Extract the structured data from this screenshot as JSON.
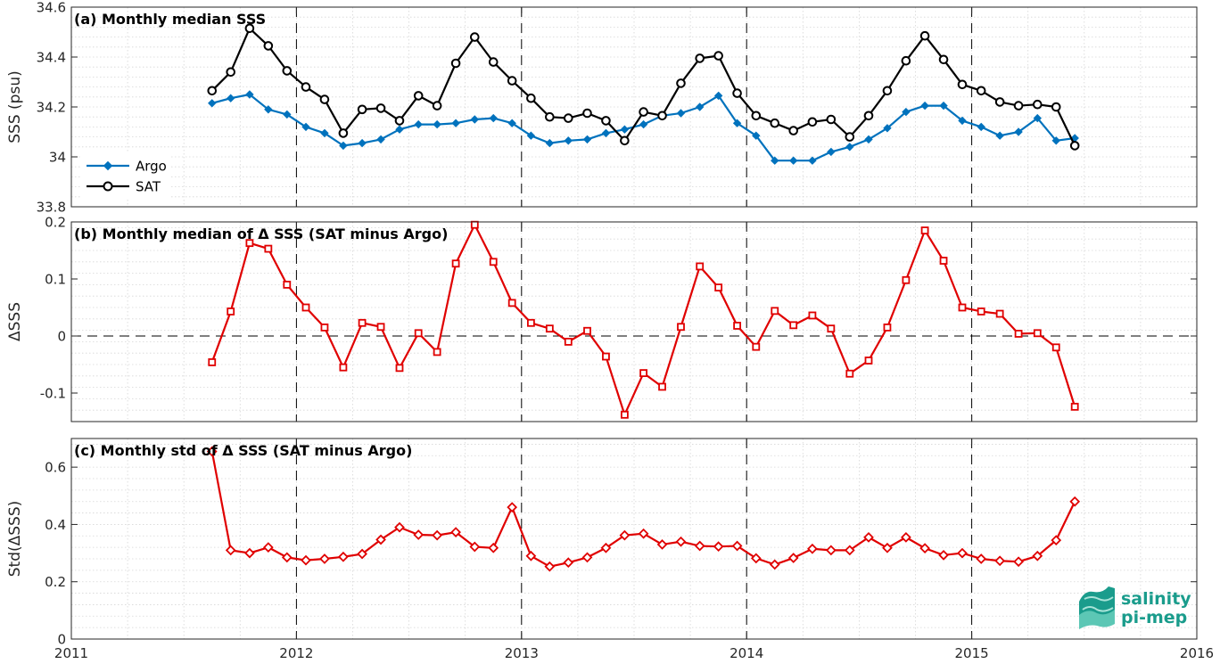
{
  "colors": {
    "argo": "#0072BD",
    "sat": "#000000",
    "delta": "#E00000",
    "logo": "#1a9c8c"
  },
  "logo": {
    "line1": "salinity",
    "line2": "pi-mep",
    "icon": "salinity-wave-logo-icon"
  },
  "chart_data": [
    {
      "type": "line",
      "title": "(a) Monthly median SSS",
      "xlabel": "",
      "ylabel": "SSS (psu)",
      "xlim": [
        2011,
        2016
      ],
      "ylim": [
        33.8,
        34.6
      ],
      "xticks": [
        "2011",
        "2012",
        "2013",
        "2014",
        "2015",
        "2016"
      ],
      "yticks": [
        "33.8",
        "34",
        "34.2",
        "34.4",
        "34.6"
      ],
      "grid": "on (dotted minor)",
      "legend_position": "lower-left",
      "year_dividers": [
        2012,
        2013,
        2014,
        2015
      ],
      "x": [
        2011.625,
        2011.708,
        2011.792,
        2011.875,
        2011.958,
        2012.042,
        2012.125,
        2012.208,
        2012.292,
        2012.375,
        2012.458,
        2012.542,
        2012.625,
        2012.708,
        2012.792,
        2012.875,
        2012.958,
        2013.042,
        2013.125,
        2013.208,
        2013.292,
        2013.375,
        2013.458,
        2013.542,
        2013.625,
        2013.708,
        2013.792,
        2013.875,
        2013.958,
        2014.042,
        2014.125,
        2014.208,
        2014.292,
        2014.375,
        2014.458,
        2014.542,
        2014.625,
        2014.708,
        2014.792,
        2014.875,
        2014.958,
        2015.042,
        2015.125,
        2015.208,
        2015.292,
        2015.375,
        2015.458
      ],
      "series": [
        {
          "name": "Argo",
          "marker": "diamond",
          "values": [
            34.215,
            34.235,
            34.25,
            34.19,
            34.17,
            34.12,
            34.095,
            34.045,
            34.055,
            34.07,
            34.11,
            34.13,
            34.13,
            34.135,
            34.15,
            34.155,
            34.135,
            34.085,
            34.055,
            34.065,
            34.07,
            34.095,
            34.11,
            34.13,
            34.165,
            34.175,
            34.2,
            34.245,
            34.135,
            34.085,
            33.985,
            33.985,
            33.985,
            34.02,
            34.04,
            34.07,
            34.115,
            34.18,
            34.205,
            34.205,
            34.145,
            34.12,
            34.085,
            34.1,
            34.155,
            34.065,
            34.075
          ]
        },
        {
          "name": "SAT",
          "marker": "circle",
          "values": [
            34.265,
            34.34,
            34.515,
            34.445,
            34.345,
            34.28,
            34.23,
            34.095,
            34.19,
            34.195,
            34.145,
            34.245,
            34.205,
            34.375,
            34.48,
            34.38,
            34.305,
            34.235,
            34.16,
            34.155,
            34.175,
            34.145,
            34.065,
            34.18,
            34.165,
            34.295,
            34.395,
            34.405,
            34.255,
            34.165,
            34.135,
            34.105,
            34.14,
            34.15,
            34.08,
            34.165,
            34.265,
            34.385,
            34.485,
            34.39,
            34.29,
            34.265,
            34.22,
            34.205,
            34.21,
            34.2,
            34.045
          ]
        }
      ]
    },
    {
      "type": "line",
      "title": "(b) Monthly median of Δ SSS (SAT minus Argo)",
      "xlabel": "",
      "ylabel": "ΔSSS",
      "xlim": [
        2011,
        2016
      ],
      "ylim": [
        -0.15,
        0.2
      ],
      "xticks": [
        "2011",
        "2012",
        "2013",
        "2014",
        "2015",
        "2016"
      ],
      "yticks": [
        "-0.1",
        "0",
        "0.1",
        "0.2"
      ],
      "grid": "on (dotted minor)",
      "zero_line": true,
      "year_dividers": [
        2012,
        2013,
        2014,
        2015
      ],
      "x": [
        2011.625,
        2011.708,
        2011.792,
        2011.875,
        2011.958,
        2012.042,
        2012.125,
        2012.208,
        2012.292,
        2012.375,
        2012.458,
        2012.542,
        2012.625,
        2012.708,
        2012.792,
        2012.875,
        2012.958,
        2013.042,
        2013.125,
        2013.208,
        2013.292,
        2013.375,
        2013.458,
        2013.542,
        2013.625,
        2013.708,
        2013.792,
        2013.875,
        2013.958,
        2014.042,
        2014.125,
        2014.208,
        2014.292,
        2014.375,
        2014.458,
        2014.542,
        2014.625,
        2014.708,
        2014.792,
        2014.875,
        2014.958,
        2015.042,
        2015.125,
        2015.208,
        2015.292,
        2015.375,
        2015.458
      ],
      "series": [
        {
          "marker": "square",
          "values": [
            -0.046,
            0.043,
            0.163,
            0.153,
            0.09,
            0.05,
            0.015,
            -0.055,
            0.023,
            0.016,
            -0.056,
            0.005,
            -0.028,
            0.127,
            0.195,
            0.13,
            0.058,
            0.023,
            0.013,
            -0.01,
            0.009,
            -0.036,
            -0.138,
            -0.065,
            -0.089,
            0.016,
            0.122,
            0.085,
            0.018,
            -0.019,
            0.044,
            0.019,
            0.036,
            0.013,
            -0.066,
            -0.043,
            0.015,
            0.098,
            0.185,
            0.132,
            0.05,
            0.043,
            0.039,
            0.004,
            0.005,
            -0.02,
            -0.124
          ]
        }
      ]
    },
    {
      "type": "line",
      "title": "(c) Monthly std of Δ SSS (SAT minus Argo)",
      "xlabel": "",
      "ylabel": "Std(ΔSSS)",
      "xlim": [
        2011,
        2016
      ],
      "ylim": [
        0,
        0.7
      ],
      "xticks": [
        "2011",
        "2012",
        "2013",
        "2014",
        "2015",
        "2016"
      ],
      "yticks": [
        "0",
        "0.2",
        "0.4",
        "0.6"
      ],
      "grid": "on (dotted minor)",
      "year_dividers": [
        2012,
        2013,
        2014,
        2015
      ],
      "x": [
        2011.625,
        2011.708,
        2011.792,
        2011.875,
        2011.958,
        2012.042,
        2012.125,
        2012.208,
        2012.292,
        2012.375,
        2012.458,
        2012.542,
        2012.625,
        2012.708,
        2012.792,
        2012.875,
        2012.958,
        2013.042,
        2013.125,
        2013.208,
        2013.292,
        2013.375,
        2013.458,
        2013.542,
        2013.625,
        2013.708,
        2013.792,
        2013.875,
        2013.958,
        2014.042,
        2014.125,
        2014.208,
        2014.292,
        2014.375,
        2014.458,
        2014.542,
        2014.625,
        2014.708,
        2014.792,
        2014.875,
        2014.958,
        2015.042,
        2015.125,
        2015.208,
        2015.292,
        2015.375,
        2015.458
      ],
      "series": [
        {
          "marker": "diamond",
          "values": [
            0.655,
            0.31,
            0.3,
            0.32,
            0.285,
            0.275,
            0.28,
            0.287,
            0.297,
            0.347,
            0.39,
            0.364,
            0.362,
            0.373,
            0.322,
            0.318,
            0.46,
            0.29,
            0.253,
            0.267,
            0.285,
            0.318,
            0.362,
            0.368,
            0.33,
            0.34,
            0.325,
            0.323,
            0.325,
            0.282,
            0.26,
            0.283,
            0.315,
            0.31,
            0.31,
            0.355,
            0.318,
            0.355,
            0.317,
            0.293,
            0.3,
            0.28,
            0.273,
            0.27,
            0.29,
            0.345,
            0.48
          ]
        }
      ]
    }
  ]
}
